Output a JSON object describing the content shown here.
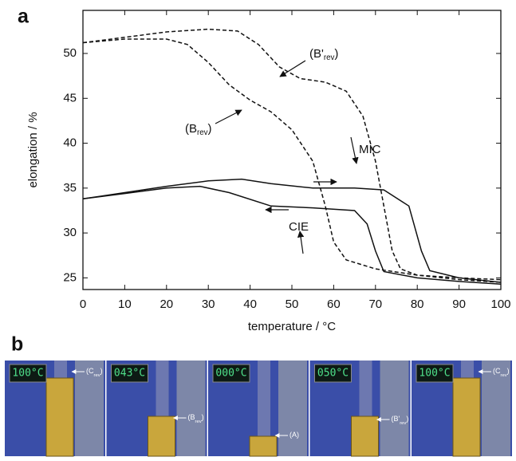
{
  "panel_a": "a",
  "panel_b": "b",
  "chart_data": {
    "type": "line",
    "xlabel": "temperature / °C",
    "ylabel": "elongation / %",
    "xlim": [
      0,
      100
    ],
    "ylim": [
      23.7,
      54.8
    ],
    "xticks": [
      0,
      10,
      20,
      30,
      40,
      50,
      60,
      70,
      80,
      90,
      100
    ],
    "yticks": [
      25,
      30,
      35,
      40,
      45,
      50
    ],
    "grid": false,
    "series": [
      {
        "color": "#111111",
        "style": "dashed",
        "x": [
          0,
          10,
          20,
          30,
          37,
          42,
          47,
          52,
          58,
          63,
          67,
          70,
          72,
          74,
          76,
          80,
          90,
          100
        ],
        "values": [
          51.2,
          51.8,
          52.4,
          52.7,
          52.5,
          51,
          48.5,
          47.2,
          46.8,
          45.8,
          43,
          38,
          33,
          28,
          26,
          25.3,
          25,
          24.8
        ]
      },
      {
        "color": "#111111",
        "style": "dashed",
        "x": [
          0,
          10,
          20,
          25,
          30,
          35,
          40,
          45,
          50,
          55,
          58,
          60,
          63,
          70,
          80,
          90,
          100
        ],
        "values": [
          51.2,
          51.6,
          51.6,
          51,
          49,
          46.5,
          44.8,
          43.5,
          41.5,
          38,
          33,
          29,
          27,
          26,
          25.3,
          24.8,
          24.5
        ]
      },
      {
        "color": "#111111",
        "style": "solid",
        "x": [
          0,
          10,
          20,
          30,
          38,
          45,
          55,
          65,
          72,
          78,
          81,
          83,
          90,
          100
        ],
        "values": [
          33.8,
          34.5,
          35.2,
          35.8,
          36,
          35.5,
          35,
          35,
          34.8,
          33,
          28,
          25.8,
          25,
          24.5
        ]
      },
      {
        "color": "#111111",
        "style": "solid",
        "x": [
          100,
          90,
          80,
          72,
          70,
          68,
          65,
          55,
          45,
          35,
          28,
          20,
          10,
          0
        ],
        "values": [
          24.3,
          24.6,
          25,
          25.7,
          28,
          31,
          32.5,
          32.8,
          33,
          34.5,
          35.2,
          35,
          34.4,
          33.8
        ]
      }
    ],
    "annotations": [
      {
        "text": "(B'",
        "sub": "rev",
        "suffix": ")"
      },
      {
        "text": "(B",
        "sub": "rev",
        "suffix": ")"
      },
      {
        "text": "MIC"
      },
      {
        "text": "CIE"
      }
    ]
  },
  "photos": [
    {
      "display": "100°C",
      "label": {
        "text": "(C",
        "sub": "rev",
        "suffix": ")"
      }
    },
    {
      "display": "043°C",
      "label": {
        "text": "(B",
        "sub": "rev",
        "suffix": ")"
      }
    },
    {
      "display": "000°C",
      "label": {
        "text": "(A)"
      }
    },
    {
      "display": "050°C",
      "label": {
        "text": "(B'",
        "sub": "rev",
        "suffix": ")"
      }
    },
    {
      "display": "100°C",
      "label": {
        "text": "(C",
        "sub": "rev",
        "suffix": ")"
      }
    }
  ]
}
